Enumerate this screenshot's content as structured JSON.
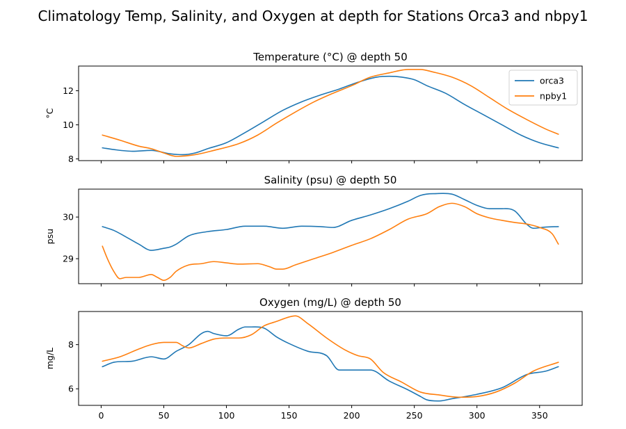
{
  "figure": {
    "suptitle": "Climatology Temp, Salinity, and Oxygen at depth for Stations Orca3 and nbpy1"
  },
  "colors": {
    "orca3": "#1f77b4",
    "npby1": "#ff7f0e"
  },
  "chart_data": [
    {
      "type": "line",
      "title": "Temperature (°C) @ depth 50",
      "xlabel": "",
      "ylabel": "°C",
      "xlim": [
        -18,
        384
      ],
      "ylim": [
        7.9,
        13.45
      ],
      "xticks": [
        0,
        50,
        100,
        150,
        200,
        250,
        300,
        350
      ],
      "show_xtick_labels": false,
      "yticks": [
        8,
        10,
        12
      ],
      "legend": "top-right",
      "series": [
        {
          "name": "orca3",
          "color": "#1f77b4",
          "x": [
            1,
            10,
            25,
            40,
            55,
            65,
            75,
            85,
            100,
            115,
            130,
            145,
            160,
            175,
            190,
            205,
            220,
            230,
            240,
            250,
            260,
            275,
            290,
            305,
            320,
            335,
            350,
            365
          ],
          "y": [
            8.65,
            8.55,
            8.45,
            8.5,
            8.3,
            8.25,
            8.35,
            8.6,
            8.95,
            9.55,
            10.2,
            10.85,
            11.35,
            11.75,
            12.1,
            12.5,
            12.8,
            12.85,
            12.8,
            12.65,
            12.3,
            11.85,
            11.2,
            10.6,
            10.0,
            9.4,
            8.95,
            8.65
          ]
        },
        {
          "name": "npby1",
          "color": "#ff7f0e",
          "x": [
            1,
            15,
            30,
            40,
            50,
            60,
            75,
            90,
            110,
            125,
            140,
            155,
            170,
            185,
            200,
            215,
            230,
            245,
            255,
            265,
            280,
            295,
            310,
            325,
            340,
            355,
            365
          ],
          "y": [
            9.4,
            9.1,
            8.75,
            8.6,
            8.35,
            8.15,
            8.25,
            8.5,
            8.9,
            9.4,
            10.1,
            10.75,
            11.35,
            11.85,
            12.3,
            12.8,
            13.05,
            13.25,
            13.25,
            13.1,
            12.8,
            12.3,
            11.6,
            10.9,
            10.3,
            9.75,
            9.45
          ]
        }
      ]
    },
    {
      "type": "line",
      "title": "Salinity (psu) @ depth 50",
      "xlabel": "",
      "ylabel": "psu",
      "xlim": [
        -18,
        384
      ],
      "ylim": [
        28.4,
        30.67
      ],
      "xticks": [
        0,
        50,
        100,
        150,
        200,
        250,
        300,
        350
      ],
      "show_xtick_labels": false,
      "yticks": [
        29,
        30
      ],
      "series": [
        {
          "name": "orca3",
          "color": "#1f77b4",
          "x": [
            1,
            10,
            20,
            30,
            40,
            50,
            55,
            60,
            70,
            85,
            100,
            115,
            130,
            145,
            160,
            175,
            185,
            200,
            215,
            230,
            245,
            255,
            265,
            280,
            290,
            300,
            310,
            320,
            330,
            340,
            345,
            355,
            365
          ],
          "y": [
            29.77,
            29.68,
            29.52,
            29.35,
            29.2,
            29.25,
            29.28,
            29.35,
            29.55,
            29.65,
            29.7,
            29.78,
            29.78,
            29.73,
            29.78,
            29.77,
            29.75,
            29.92,
            30.05,
            30.2,
            30.38,
            30.52,
            30.56,
            30.55,
            30.42,
            30.28,
            30.2,
            30.2,
            30.15,
            29.82,
            29.73,
            29.76,
            29.77
          ]
        },
        {
          "name": "npby1",
          "color": "#ff7f0e",
          "x": [
            1,
            5,
            10,
            15,
            20,
            30,
            40,
            45,
            50,
            55,
            60,
            70,
            80,
            90,
            100,
            110,
            125,
            135,
            140,
            145,
            155,
            170,
            185,
            200,
            215,
            230,
            245,
            260,
            270,
            280,
            290,
            300,
            310,
            320,
            330,
            340,
            350,
            360,
            365
          ],
          "y": [
            29.3,
            29.0,
            28.7,
            28.52,
            28.55,
            28.55,
            28.62,
            28.55,
            28.48,
            28.55,
            28.7,
            28.85,
            28.88,
            28.93,
            28.9,
            28.87,
            28.88,
            28.8,
            28.75,
            28.75,
            28.85,
            29.0,
            29.15,
            29.32,
            29.48,
            29.7,
            29.95,
            30.08,
            30.25,
            30.33,
            30.25,
            30.08,
            29.98,
            29.92,
            29.87,
            29.83,
            29.75,
            29.6,
            29.35
          ]
        }
      ]
    },
    {
      "type": "line",
      "title": "Oxygen (mg/L) @ depth 50",
      "xlabel": "",
      "ylabel": "mg/L",
      "xlim": [
        -18,
        384
      ],
      "ylim": [
        5.25,
        9.5
      ],
      "xticks": [
        0,
        50,
        100,
        150,
        200,
        250,
        300,
        350
      ],
      "show_xtick_labels": true,
      "yticks": [
        6,
        8
      ],
      "series": [
        {
          "name": "orca3",
          "color": "#1f77b4",
          "x": [
            1,
            10,
            25,
            40,
            50,
            60,
            70,
            80,
            85,
            90,
            100,
            110,
            115,
            120,
            130,
            140,
            150,
            165,
            180,
            190,
            200,
            215,
            230,
            245,
            255,
            260,
            270,
            280,
            300,
            320,
            340,
            355,
            365
          ],
          "y": [
            7.0,
            7.2,
            7.25,
            7.45,
            7.35,
            7.7,
            8.0,
            8.5,
            8.6,
            8.5,
            8.4,
            8.7,
            8.8,
            8.8,
            8.75,
            8.35,
            8.05,
            7.7,
            7.5,
            6.85,
            6.85,
            6.85,
            6.35,
            5.95,
            5.65,
            5.5,
            5.45,
            5.55,
            5.75,
            6.05,
            6.65,
            6.8,
            7.0
          ]
        },
        {
          "name": "npby1",
          "color": "#ff7f0e",
          "x": [
            1,
            15,
            30,
            40,
            50,
            60,
            65,
            70,
            80,
            90,
            100,
            110,
            120,
            130,
            140,
            150,
            155,
            165,
            180,
            195,
            205,
            215,
            225,
            240,
            255,
            270,
            285,
            300,
            315,
            330,
            345,
            365
          ],
          "y": [
            7.25,
            7.45,
            7.8,
            8.0,
            8.1,
            8.1,
            7.95,
            7.85,
            8.05,
            8.25,
            8.3,
            8.3,
            8.45,
            8.85,
            9.05,
            9.25,
            9.3,
            8.95,
            8.3,
            7.75,
            7.5,
            7.35,
            6.75,
            6.3,
            5.85,
            5.72,
            5.62,
            5.65,
            5.85,
            6.25,
            6.8,
            7.2
          ]
        }
      ]
    }
  ]
}
